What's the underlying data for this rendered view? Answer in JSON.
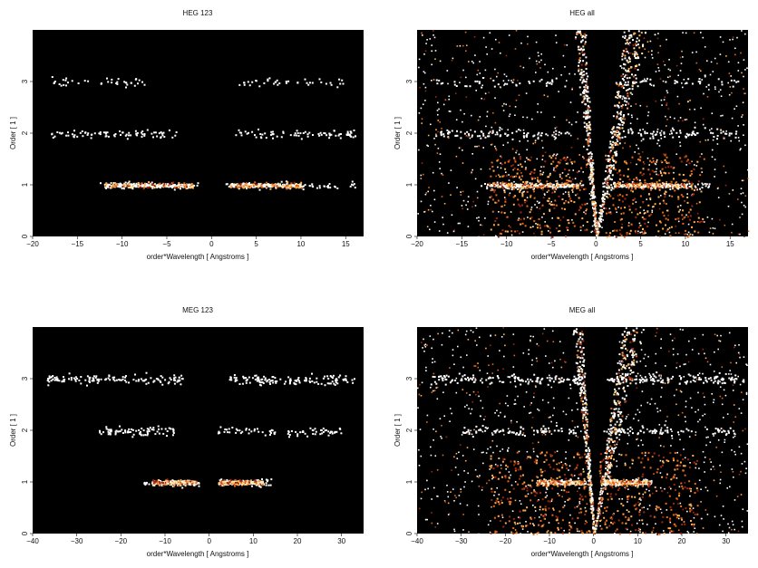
{
  "chart_data": [
    {
      "type": "heatmap",
      "title": "HEG 123",
      "xlabel": "order*Wavelength [ Angstroms ]",
      "ylabel": "Order [ 1 ]",
      "xlim": [
        -20,
        17
      ],
      "ylim": [
        0,
        4
      ],
      "xticks": [
        -20,
        -15,
        -10,
        -5,
        0,
        5,
        10,
        15
      ],
      "yticks": [
        0,
        1,
        2,
        3
      ],
      "background": "#000000",
      "bands": [
        {
          "order": 1,
          "x_ranges": [
            [
              -13,
              -1.5
            ],
            [
              1.5,
              16
            ]
          ],
          "core_ranges": [
            [
              -12,
              -2
            ],
            [
              2,
              10
            ]
          ],
          "density": "high"
        },
        {
          "order": 2,
          "x_ranges": [
            [
              -18,
              -4
            ],
            [
              2.5,
              16
            ]
          ],
          "density": "low"
        },
        {
          "order": 3,
          "x_ranges": [
            [
              -18,
              -7
            ],
            [
              3,
              15
            ]
          ],
          "density": "sparse"
        }
      ],
      "funnel": false
    },
    {
      "type": "heatmap",
      "title": "HEG all",
      "xlabel": "order*Wavelength [ Angstroms ]",
      "ylabel": "Order [ 1 ]",
      "xlim": [
        -20,
        17
      ],
      "ylim": [
        0,
        4
      ],
      "xticks": [
        -20,
        -15,
        -10,
        -5,
        0,
        5,
        10,
        15
      ],
      "yticks": [
        0,
        1,
        2,
        3
      ],
      "background": "#000000",
      "bands": [
        {
          "order": 1,
          "x_ranges": [
            [
              -13,
              -1.5
            ],
            [
              1.5,
              13
            ]
          ],
          "core_ranges": [
            [
              -12,
              -2
            ],
            [
              2,
              10
            ]
          ],
          "density": "high"
        },
        {
          "order": 2,
          "x_ranges": [
            [
              -18,
              -3
            ],
            [
              2,
              16
            ]
          ],
          "density": "low"
        },
        {
          "order": 3,
          "x_ranges": [
            [
              -18,
              -3
            ],
            [
              2,
              16
            ]
          ],
          "density": "sparse"
        }
      ],
      "funnel": true
    },
    {
      "type": "heatmap",
      "title": "MEG 123",
      "xlabel": "order*Wavelength [ Angstroms ]",
      "ylabel": "Order [ 1 ]",
      "xlim": [
        -40,
        35
      ],
      "ylim": [
        0,
        4
      ],
      "xticks": [
        -40,
        -30,
        -20,
        -10,
        0,
        10,
        20,
        30
      ],
      "yticks": [
        0,
        1,
        2,
        3
      ],
      "background": "#000000",
      "bands": [
        {
          "order": 1,
          "x_ranges": [
            [
              -15,
              -2
            ],
            [
              2,
              14
            ]
          ],
          "core_ranges": [
            [
              -13,
              -3
            ],
            [
              2,
              12
            ]
          ],
          "density": "high"
        },
        {
          "order": 2,
          "x_ranges": [
            [
              -25,
              -8
            ],
            [
              1,
              30
            ]
          ],
          "density": "low"
        },
        {
          "order": 3,
          "x_ranges": [
            [
              -37,
              -6
            ],
            [
              4,
              33
            ]
          ],
          "density": "medium"
        }
      ],
      "funnel": false
    },
    {
      "type": "heatmap",
      "title": "MEG all",
      "xlabel": "order*Wavelength [ Angstroms ]",
      "ylabel": "Order [ 1 ]",
      "xlim": [
        -40,
        35
      ],
      "ylim": [
        0,
        4
      ],
      "xticks": [
        -40,
        -30,
        -20,
        -10,
        0,
        10,
        20,
        30
      ],
      "yticks": [
        0,
        1,
        2,
        3
      ],
      "background": "#000000",
      "bands": [
        {
          "order": 1,
          "x_ranges": [
            [
              -13,
              -2
            ],
            [
              2,
              13
            ]
          ],
          "core_ranges": [
            [
              -13,
              -2
            ],
            [
              2,
              13
            ]
          ],
          "density": "high"
        },
        {
          "order": 2,
          "x_ranges": [
            [
              -30,
              -3
            ],
            [
              2,
              32
            ]
          ],
          "density": "low"
        },
        {
          "order": 3,
          "x_ranges": [
            [
              -37,
              -3
            ],
            [
              3,
              34
            ]
          ],
          "density": "medium"
        }
      ],
      "funnel": true
    }
  ],
  "colors": {
    "hot_1": "#ffffff",
    "hot_2": "#ffe6a0",
    "hot_3": "#ffb050",
    "hot_4": "#e26a1a",
    "hot_5": "#a02810"
  }
}
